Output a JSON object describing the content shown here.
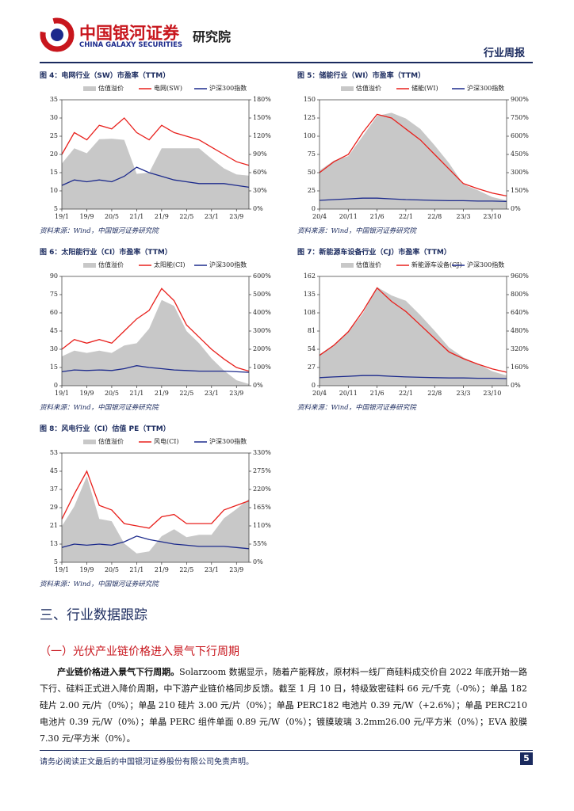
{
  "header": {
    "logo_cn": "中国银河证券",
    "logo_en": "CHINA GALAXY SECURITIES",
    "institute": "研究院",
    "report_type": "行业周报"
  },
  "chart_data": [
    {
      "type": "line",
      "title": "图 4：电网行业（SW）市盈率（TTM）",
      "source": "资料来源：Wind，中国银河证券研究院",
      "categories": [
        "19/1",
        null,
        "19/9",
        null,
        "20/5",
        null,
        "21/1",
        null,
        "21/9",
        null,
        "22/5",
        null,
        "23/1",
        null,
        "23/9",
        null
      ],
      "series": [
        {
          "name": "估值溢价",
          "color": "#c8c8c8",
          "axis": "y2",
          "kind": "area",
          "values": [
            75,
            100,
            92,
            115,
            116,
            114,
            58,
            60,
            100,
            100,
            100,
            100,
            83,
            67,
            57,
            55
          ]
        },
        {
          "name": "电网(SW)",
          "color": "#e8201c",
          "values": [
            20,
            26,
            24,
            28,
            27,
            30,
            26,
            24,
            28,
            26,
            25,
            24,
            22,
            20,
            18,
            17
          ]
        },
        {
          "name": "沪深300指数",
          "color": "#1c2a8c",
          "values": [
            11.5,
            13,
            12.5,
            13,
            12.5,
            14,
            16.5,
            15,
            14,
            13,
            12.5,
            12,
            12,
            12,
            11.5,
            11
          ]
        }
      ],
      "ylim": [
        5,
        35
      ],
      "yticks": [
        5,
        10,
        15,
        20,
        25,
        30,
        35
      ],
      "y2lim": [
        0,
        180
      ],
      "y2ticks": [
        {
          "value": 0,
          "label": "0%"
        },
        {
          "value": 30,
          "label": "30%"
        },
        {
          "value": 60,
          "label": "60%"
        },
        {
          "value": 90,
          "label": "90%"
        },
        {
          "value": 120,
          "label": "120%"
        },
        {
          "value": 150,
          "label": "150%"
        },
        {
          "value": 180,
          "label": "180%"
        }
      ]
    },
    {
      "type": "line",
      "title": "图 5：储能行业（WI）市盈率（TTM）",
      "source": "资料来源：Wind，中国银河证券研究院",
      "categories": [
        "20/4",
        null,
        "20/11",
        null,
        "21/6",
        null,
        "22/1",
        null,
        "22/8",
        null,
        "23/3",
        null,
        "23/10",
        null
      ],
      "series": [
        {
          "name": "估值溢价",
          "color": "#c8c8c8",
          "axis": "y2",
          "kind": "area",
          "values": [
            317,
            400,
            436,
            600,
            767,
            793,
            746,
            660,
            525,
            378,
            204,
            155,
            100,
            71
          ]
        },
        {
          "name": "储能(WI)",
          "color": "#e8201c",
          "values": [
            50,
            65,
            75,
            105,
            130,
            125,
            110,
            95,
            75,
            55,
            35,
            28,
            22,
            18
          ]
        },
        {
          "name": "沪深300指数",
          "color": "#1c2a8c",
          "values": [
            12,
            13,
            14,
            15,
            15,
            14,
            13,
            12.5,
            12,
            11.5,
            11.5,
            11,
            11,
            10.5
          ]
        }
      ],
      "ylim": [
        0,
        150
      ],
      "yticks": [
        0,
        25,
        50,
        75,
        100,
        125,
        150
      ],
      "y2lim": [
        0,
        900
      ],
      "y2ticks": [
        {
          "value": 0,
          "label": "0%"
        },
        {
          "value": 150,
          "label": "150%"
        },
        {
          "value": 300,
          "label": "300%"
        },
        {
          "value": 450,
          "label": "450%"
        },
        {
          "value": 600,
          "label": "600%"
        },
        {
          "value": 750,
          "label": "750%"
        },
        {
          "value": 900,
          "label": "900%"
        }
      ]
    },
    {
      "type": "line",
      "title": "图 6：太阳能行业（CI）市盈率（TTM）",
      "source": "资料来源：Wind，中国银河证券研究院",
      "categories": [
        "19/1",
        null,
        "19/9",
        null,
        "20/5",
        null,
        "21/1",
        null,
        "21/9",
        null,
        "22/5",
        null,
        "23/1",
        null,
        "23/9",
        null
      ],
      "series": [
        {
          "name": "估值溢价",
          "color": "#c8c8c8",
          "axis": "y2",
          "kind": "area",
          "values": [
            161,
            192,
            180,
            192,
            180,
            221,
            233,
            313,
            471,
            438,
            300,
            233,
            150,
            83,
            30,
            9
          ]
        },
        {
          "name": "太阳能(CI)",
          "color": "#e8201c",
          "values": [
            30,
            38,
            35,
            38,
            35,
            45,
            55,
            62,
            80,
            70,
            50,
            40,
            30,
            22,
            15,
            12
          ]
        },
        {
          "name": "沪深300指数",
          "color": "#1c2a8c",
          "values": [
            11.5,
            13,
            12.5,
            13,
            12.5,
            14,
            16.5,
            15,
            14,
            13,
            12.5,
            12,
            12,
            12,
            11.5,
            11
          ]
        }
      ],
      "ylim": [
        0,
        90
      ],
      "yticks": [
        0,
        15,
        30,
        45,
        60,
        75,
        90
      ],
      "y2lim": [
        0,
        600
      ],
      "y2ticks": [
        {
          "value": 0,
          "label": "0%"
        },
        {
          "value": 100,
          "label": "100%"
        },
        {
          "value": 200,
          "label": "200%"
        },
        {
          "value": 300,
          "label": "300%"
        },
        {
          "value": 400,
          "label": "400%"
        },
        {
          "value": 500,
          "label": "500%"
        },
        {
          "value": 600,
          "label": "600%"
        }
      ]
    },
    {
      "type": "line",
      "title": "图 7：新能源车设备行业（CJ）市盈率（TTM）",
      "source": "资料来源：Wind，中国银河证券研究院",
      "categories": [
        "20/4",
        null,
        "20/11",
        null,
        "21/6",
        null,
        "22/1",
        null,
        "22/8",
        null,
        "23/3",
        null,
        "23/10",
        null
      ],
      "series": [
        {
          "name": "估值溢价",
          "color": "#c8c8c8",
          "axis": "y2",
          "kind": "area",
          "values": [
            275,
            362,
            471,
            633,
            867,
            793,
            746,
            620,
            483,
            335,
            248,
            191,
            127,
            90
          ]
        },
        {
          "name": "新能源车设备(CJ)",
          "color": "#e8201c",
          "values": [
            45,
            60,
            80,
            110,
            145,
            125,
            110,
            90,
            70,
            50,
            40,
            32,
            25,
            20
          ]
        },
        {
          "name": "沪深300指数",
          "color": "#1c2a8c",
          "values": [
            12,
            13,
            14,
            15,
            15,
            14,
            13,
            12.5,
            12,
            11.5,
            11.5,
            11,
            11,
            10.5
          ]
        }
      ],
      "ylim": [
        0,
        162
      ],
      "yticks": [
        0,
        27,
        54,
        81,
        108,
        135,
        162
      ],
      "y2lim": [
        0,
        960
      ],
      "y2ticks": [
        {
          "value": 0,
          "label": "0%"
        },
        {
          "value": 160,
          "label": "160%"
        },
        {
          "value": 320,
          "label": "320%"
        },
        {
          "value": 480,
          "label": "480%"
        },
        {
          "value": 640,
          "label": "640%"
        },
        {
          "value": 800,
          "label": "800%"
        },
        {
          "value": 960,
          "label": "960%"
        }
      ]
    },
    {
      "type": "line",
      "title": "图 8：风电行业（CI）估值 PE（TTM）",
      "source": "资料来源：Wind，中国银河证券研究院",
      "categories": [
        "19/1",
        null,
        "19/9",
        null,
        "20/5",
        null,
        "21/1",
        null,
        "21/9",
        null,
        "22/5",
        null,
        "23/1",
        null,
        "23/9",
        null
      ],
      "series": [
        {
          "name": "估值溢价",
          "color": "#c8c8c8",
          "axis": "y2",
          "kind": "area",
          "values": [
            109,
            169,
            260,
            131,
            124,
            57,
            27,
            33,
            79,
            100,
            76,
            83,
            83,
            133,
            161,
            191
          ]
        },
        {
          "name": "风电(CI)",
          "color": "#e8201c",
          "values": [
            24,
            35,
            45,
            30,
            28,
            22,
            21,
            20,
            25,
            26,
            22,
            22,
            22,
            28,
            30,
            32
          ]
        },
        {
          "name": "沪深300指数",
          "color": "#1c2a8c",
          "values": [
            11.5,
            13,
            12.5,
            13,
            12.5,
            14,
            16.5,
            15,
            14,
            13,
            12.5,
            12,
            12,
            12,
            11.5,
            11
          ]
        }
      ],
      "ylim": [
        5,
        53
      ],
      "yticks": [
        5,
        13,
        21,
        29,
        37,
        45,
        53
      ],
      "y2lim": [
        0,
        330
      ],
      "y2ticks": [
        {
          "value": 0,
          "label": "0%"
        },
        {
          "value": 55,
          "label": "55%"
        },
        {
          "value": 110,
          "label": "110%"
        },
        {
          "value": 165,
          "label": "165%"
        },
        {
          "value": 220,
          "label": "220%"
        },
        {
          "value": 275,
          "label": "275%"
        },
        {
          "value": 330,
          "label": "330%"
        }
      ]
    }
  ],
  "section": {
    "title": "三、行业数据跟踪",
    "subtitle": "（一）光伏产业链价格进入景气下行周期",
    "lead": "产业链价格进入景气下行周期。",
    "body": "Solarzoom 数据显示，随着产能释放，原材料一线厂商硅料成交价自 2022 年底开始一路下行、硅料正式进入降价周期，中下游产业链价格同步反馈。截至 1 月 10 日，特级致密硅料 66 元/千克（-0%）；单晶 182 硅片 2.00 元/片（0%）；单晶 210 硅片 3.00 元/片（0%）；单晶 PERC182 电池片 0.39 元/W（+2.6%）；单晶 PERC210 电池片 0.39 元/W（0%）；单晶 PERC 组件单面 0.89 元/W（0%）；镀膜玻璃 3.2mm26.00 元/平方米（0%）；EVA 胶膜 7.30 元/平方米（0%）。"
  },
  "footer": {
    "disclaimer": "请务必阅读正文最后的中国银河证券股份有限公司免责声明。",
    "page": "5"
  }
}
